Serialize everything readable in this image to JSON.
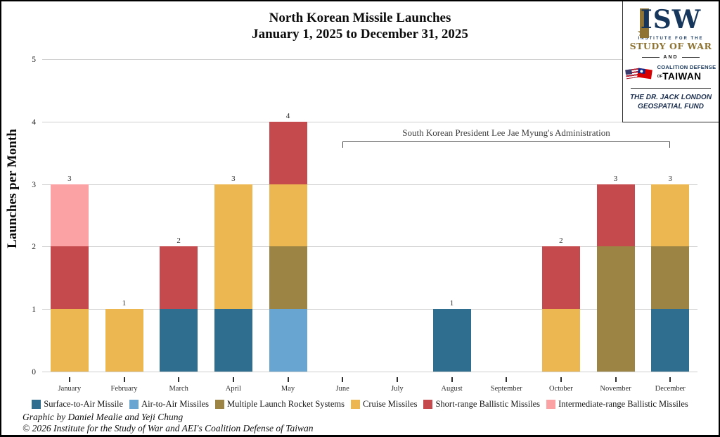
{
  "chart_data": {
    "type": "bar",
    "stacked": true,
    "title": "North Korean Missile Launches",
    "subtitle": "January 1, 2025 to December 31, 2025",
    "ylabel": "Launches per Month",
    "ylim": [
      0,
      5
    ],
    "yticks": [
      0,
      1,
      2,
      3,
      4,
      5
    ],
    "grid": true,
    "legend_position": "bottom",
    "categories": [
      "January",
      "February",
      "March",
      "April",
      "May",
      "June",
      "July",
      "August",
      "September",
      "October",
      "November",
      "December"
    ],
    "series": [
      {
        "name": "Surface-to-Air Missile",
        "color": "#306e90",
        "values": [
          0,
          0,
          1,
          1,
          0,
          0,
          0,
          1,
          0,
          0,
          0,
          1
        ]
      },
      {
        "name": "Air-to-Air Missiles",
        "color": "#68a6d1",
        "values": [
          0,
          0,
          0,
          0,
          1,
          0,
          0,
          0,
          0,
          0,
          0,
          0
        ]
      },
      {
        "name": "Multiple Launch Rocket Systems",
        "color": "#9c8445",
        "values": [
          0,
          0,
          0,
          0,
          1,
          0,
          0,
          0,
          0,
          0,
          2,
          1
        ]
      },
      {
        "name": "Cruise Missiles",
        "color": "#ecb750",
        "values": [
          1,
          1,
          0,
          2,
          1,
          0,
          0,
          0,
          0,
          1,
          0,
          1
        ]
      },
      {
        "name": "Short-range Ballistic Missiles",
        "color": "#c54a4e",
        "values": [
          1,
          0,
          1,
          0,
          1,
          0,
          0,
          0,
          0,
          1,
          1,
          0
        ]
      },
      {
        "name": "Intermediate-range Ballistic Missiles",
        "color": "#fba3a4",
        "values": [
          1,
          0,
          0,
          0,
          0,
          0,
          0,
          0,
          0,
          0,
          0,
          0
        ]
      }
    ],
    "bar_total_labels": [
      3,
      1,
      2,
      3,
      4,
      0,
      0,
      1,
      0,
      2,
      3,
      3
    ],
    "annotation": {
      "label": "South Korean President Lee Jae Myung's Administration",
      "span_from": "June",
      "span_to": "December"
    }
  },
  "logo_card": {
    "acronym": "ISW",
    "org_line1": "INSTITUTE FOR THE",
    "org_line2": "STUDY OF WAR",
    "connector": "AND",
    "coalition_line1": "COALITION DEFENSE",
    "coalition_of": "OF",
    "coalition_name": "TAIWAN",
    "fund_line1": "THE DR. JACK LONDON",
    "fund_line2": "GEOSPATIAL FUND",
    "navy": "#16365c",
    "gold": "#8f7434"
  },
  "footer": {
    "credit_line1": "Graphic by Daniel Mealie and Yeji Chung",
    "credit_line2": "© 2026 Institute for the Study of War and AEI's Coalition Defense of Taiwan"
  }
}
